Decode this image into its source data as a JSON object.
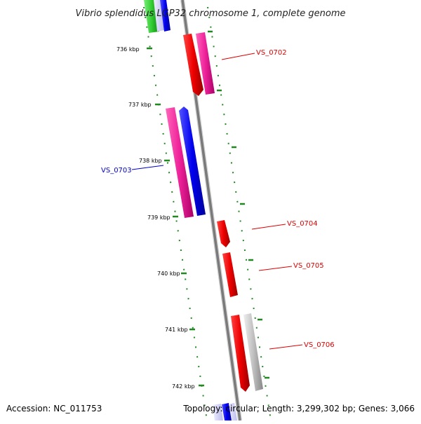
{
  "title": "Vibrio splendidus LGP32 chromosome 1, complete genome",
  "accession_text": "Accession: NC_011753",
  "topology_text": "Topology: circular; Length: 3,299,302 bp; Genes: 3,066",
  "ruler_ticks": [
    "736 kbp",
    "737 kbp",
    "738 kbp",
    "739 kbp",
    "740 kbp",
    "741 kbp",
    "742 kbp"
  ],
  "gene_labels": [
    {
      "name": "VS_0702",
      "color": "#dd0000"
    },
    {
      "name": "VS_0703",
      "color": "#0000cc"
    },
    {
      "name": "VS_0704",
      "color": "#dd0000"
    },
    {
      "name": "VS_0705",
      "color": "#dd0000"
    },
    {
      "name": "VS_0706",
      "color": "#dd0000"
    }
  ],
  "colors": {
    "backbone": "#8a8a8a",
    "rna_feature": "#ee0000",
    "cds_feature": "#ee2299",
    "blue_feature": "#0000ee",
    "green_feature": "#33cc33",
    "grey_feature": "#c0c0c0",
    "tick_marks": "#228822"
  }
}
